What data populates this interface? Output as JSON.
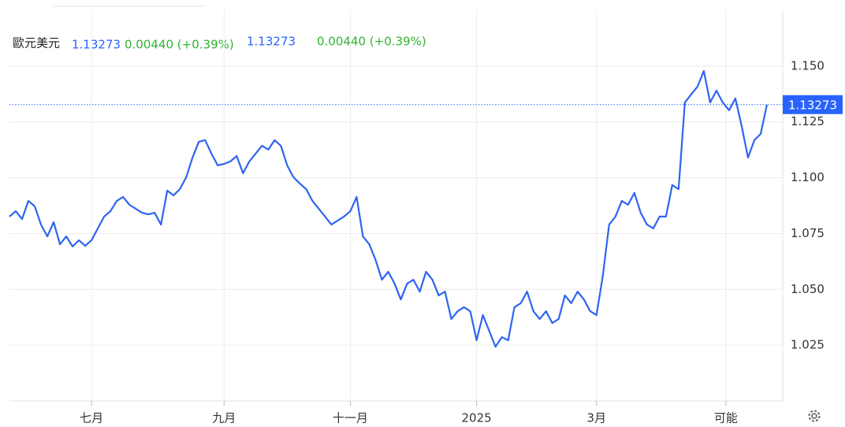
{
  "header": {
    "name": "歐元美元",
    "price": "1.13273",
    "change": "0.00440 (+0.39%)"
  },
  "chart_data": {
    "type": "line",
    "x": [
      0,
      1,
      2,
      3,
      4,
      5,
      6,
      7,
      8,
      9,
      10,
      11,
      12,
      13,
      14,
      15,
      16,
      17,
      18,
      19,
      20,
      21,
      22,
      23,
      24,
      25,
      26,
      27,
      28,
      29,
      30,
      31,
      32,
      33,
      34,
      35,
      36,
      37,
      38,
      39,
      40,
      41,
      42,
      43,
      44,
      45,
      46,
      47,
      48,
      49,
      50,
      51,
      52,
      53,
      54,
      55,
      56,
      57,
      58,
      59,
      60,
      61,
      62,
      63,
      64,
      65,
      66,
      67,
      68,
      69,
      70,
      71,
      72,
      73,
      74,
      75,
      76,
      77,
      78,
      79,
      80,
      81,
      82,
      83,
      84,
      85,
      86,
      87,
      88,
      89,
      90,
      91,
      92,
      93,
      94,
      95,
      96,
      97,
      98,
      99,
      100,
      101,
      102,
      103,
      104,
      105,
      106,
      107,
      108,
      109,
      110,
      111,
      112,
      113,
      114,
      115,
      116,
      117,
      118,
      119,
      120
    ],
    "series": [
      {
        "name": "歐元美元",
        "color": "#2e64f0",
        "values": [
          1.0826,
          1.085,
          1.0815,
          1.0896,
          1.0872,
          1.079,
          1.0737,
          1.0801,
          1.0702,
          1.0737,
          1.0692,
          1.072,
          1.0695,
          1.072,
          1.0773,
          1.0826,
          1.085,
          1.0896,
          1.0914,
          1.0879,
          1.0861,
          1.0843,
          1.0836,
          1.0843,
          1.079,
          1.0942,
          1.0921,
          1.0949,
          1.1002,
          1.109,
          1.1161,
          1.1168,
          1.1108,
          1.1055,
          1.1062,
          1.1073,
          1.1097,
          1.102,
          1.1073,
          1.1108,
          1.1143,
          1.1126,
          1.1168,
          1.1143,
          1.1055,
          1.1002,
          1.0974,
          1.0949,
          1.0896,
          1.0861,
          1.0826,
          1.079,
          1.0808,
          1.0826,
          1.085,
          1.0914,
          1.0737,
          1.0702,
          1.0632,
          1.0543,
          1.0579,
          1.0526,
          1.0455,
          1.0526,
          1.0543,
          1.049,
          1.0579,
          1.0543,
          1.0473,
          1.049,
          1.0367,
          1.0402,
          1.042,
          1.0402,
          1.0272,
          1.0385,
          1.0314,
          1.0243,
          1.0286,
          1.0272,
          1.042,
          1.0438,
          1.049,
          1.0402,
          1.0367,
          1.0402,
          1.0349,
          1.0367,
          1.0473,
          1.0438,
          1.049,
          1.0455,
          1.0402,
          1.0385,
          1.0561,
          1.079,
          1.0826,
          1.0896,
          1.0879,
          1.0932,
          1.0843,
          1.079,
          1.0773,
          1.0826,
          1.0826,
          1.0967,
          1.0949,
          1.1337,
          1.1373,
          1.1408,
          1.1478,
          1.1337,
          1.139,
          1.1337,
          1.1302,
          1.1355,
          1.1231,
          1.109,
          1.1168,
          1.1196,
          1.13273
        ]
      }
    ],
    "xlim": [
      0,
      122.5
    ],
    "xticks": [
      {
        "value": 13,
        "label": "七月"
      },
      {
        "value": 34,
        "label": "九月"
      },
      {
        "value": 54,
        "label": "十一月"
      },
      {
        "value": 74,
        "label": "2025"
      },
      {
        "value": 93,
        "label": "3月"
      },
      {
        "value": 113.5,
        "label": "可能"
      }
    ],
    "ylim": [
      1.0,
      1.175
    ],
    "yticks": [
      {
        "value": 1.025,
        "label": "1.025"
      },
      {
        "value": 1.05,
        "label": "1.050"
      },
      {
        "value": 1.075,
        "label": "1.075"
      },
      {
        "value": 1.1,
        "label": "1.100"
      },
      {
        "value": 1.125,
        "label": "1.125"
      },
      {
        "value": 1.15,
        "label": "1.150"
      }
    ],
    "grid": true
  }
}
